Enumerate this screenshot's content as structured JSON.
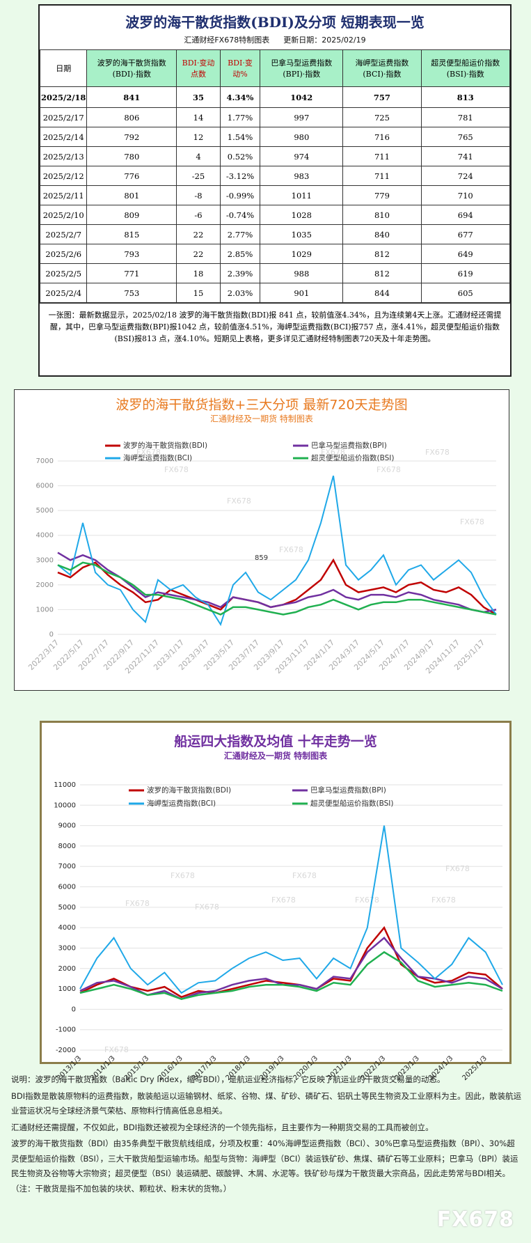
{
  "table": {
    "title": "波罗的海干散货指数(BDI)及分项  短期表现一览",
    "source": "汇通财经FX678特制图表",
    "update": "更新日期：2025/02/19",
    "header": [
      "日期",
      "波罗的海干散货指数(BDI)·指数",
      "BDI·变动点数",
      "BDI·变动%",
      "巴拿马型运费指数(BPI)·指数",
      "海岬型运费指数(BCI)·指数",
      "超灵便型船运价指数(BSI)·指数"
    ],
    "rows": [
      [
        "2025/2/18",
        "841",
        "35",
        "4.34%",
        "1042",
        "757",
        "813"
      ],
      [
        "2025/2/17",
        "806",
        "14",
        "1.77%",
        "997",
        "725",
        "781"
      ],
      [
        "2025/2/14",
        "792",
        "12",
        "1.54%",
        "980",
        "716",
        "765"
      ],
      [
        "2025/2/13",
        "780",
        "4",
        "0.52%",
        "974",
        "711",
        "741"
      ],
      [
        "2025/2/12",
        "776",
        "-25",
        "-3.12%",
        "983",
        "711",
        "724"
      ],
      [
        "2025/2/11",
        "801",
        "-8",
        "-0.99%",
        "1011",
        "779",
        "710"
      ],
      [
        "2025/2/10",
        "809",
        "-6",
        "-0.74%",
        "1028",
        "810",
        "694"
      ],
      [
        "2025/2/7",
        "815",
        "22",
        "2.77%",
        "1035",
        "840",
        "677"
      ],
      [
        "2025/2/6",
        "793",
        "22",
        "2.85%",
        "1029",
        "812",
        "649"
      ],
      [
        "2025/2/5",
        "771",
        "18",
        "2.39%",
        "988",
        "812",
        "619"
      ],
      [
        "2025/2/4",
        "753",
        "15",
        "2.03%",
        "901",
        "844",
        "605"
      ]
    ],
    "note": "一张图：最新数据显示，2025/02/18 波罗的海干散货指数(BDI)报 841 点，较前值涨4.34%，且为连续第4天上涨。汇通财经还需提醒，其中，巴拿马型运费指数(BPI)报1042 点，较前值涨4.51%，海岬型运费指数(BCI)报757 点，涨4.41%，超灵便型船运价指数(BSI)报813 点，涨4.10%。短期见上表格，更多详见汇通财经特制图表720天及十年走势图。"
  },
  "chart_data": [
    {
      "type": "line",
      "title": "波罗的海干散货指数+三大分项  最新720天走势图",
      "subtitle": "汇通财经及一期货  特制图表",
      "title_color": "#e87a20",
      "annotation": "859",
      "watermark": "FX678",
      "categories": [
        "2022/3/17",
        null,
        "2022/5/17",
        null,
        "2022/7/17",
        null,
        "2022/9/17",
        null,
        "2022/11/17",
        null,
        "2023/1/17",
        null,
        "2023/3/17",
        null,
        "2023/5/17",
        null,
        "2023/7/17",
        null,
        "2023/9/17",
        null,
        "2023/11/17",
        null,
        "2024/1/17",
        null,
        "2024/3/17",
        null,
        "2024/5/17",
        null,
        "2024/7/17",
        null,
        "2024/9/17",
        null,
        "2024/11/17",
        null,
        "2025/1/17",
        null
      ],
      "series": [
        {
          "name": "波罗的海干散货指数(BDI)",
          "color": "#c00000",
          "values": [
            2500,
            2300,
            2700,
            2900,
            2400,
            2000,
            1700,
            1300,
            1400,
            1800,
            1600,
            1400,
            1200,
            1000,
            1500,
            1400,
            1300,
            1100,
            1200,
            1400,
            1800,
            2200,
            3000,
            2000,
            1700,
            1800,
            1900,
            1700,
            2000,
            2100,
            1800,
            1700,
            1900,
            1600,
            1100,
            800
          ]
        },
        {
          "name": "巴拿马型运费指数(BPI)",
          "color": "#7030a0",
          "values": [
            3300,
            3000,
            3200,
            3000,
            2600,
            2300,
            1900,
            1500,
            1700,
            1600,
            1500,
            1400,
            1300,
            1100,
            1500,
            1400,
            1300,
            1100,
            1200,
            1300,
            1500,
            1600,
            1800,
            1500,
            1400,
            1600,
            1600,
            1500,
            1700,
            1600,
            1400,
            1300,
            1200,
            1000,
            900,
            1000
          ]
        },
        {
          "name": "海岬型运费指数(BCI)",
          "color": "#1fa8e8",
          "values": [
            2800,
            2400,
            4500,
            2500,
            2000,
            1800,
            1000,
            500,
            2200,
            1800,
            2000,
            1500,
            1200,
            400,
            2000,
            2500,
            1700,
            1400,
            1800,
            2200,
            3000,
            4500,
            6400,
            2800,
            2200,
            2600,
            3200,
            2000,
            2600,
            2800,
            2200,
            2600,
            3000,
            2500,
            1500,
            800
          ]
        },
        {
          "name": "超灵便型船运价指数(BSI)",
          "color": "#20b050",
          "values": [
            2800,
            2600,
            2900,
            2800,
            2500,
            2300,
            2000,
            1600,
            1600,
            1500,
            1400,
            1200,
            1000,
            800,
            1100,
            1100,
            1000,
            900,
            800,
            900,
            1100,
            1200,
            1400,
            1200,
            1000,
            1200,
            1300,
            1300,
            1400,
            1400,
            1300,
            1200,
            1100,
            1000,
            900,
            800
          ]
        }
      ],
      "ylim": [
        0,
        7000
      ],
      "yticks": [
        0,
        1000,
        2000,
        3000,
        4000,
        5000,
        6000,
        7000
      ],
      "grid": true
    },
    {
      "type": "line",
      "title": "船运四大指数及均值 十年走势一览",
      "subtitle": "汇通财经及一期货 特制图表",
      "title_color": "#7030a0",
      "watermark": "FX678",
      "categories": [
        "2013/1/3",
        null,
        "2014/1/3",
        null,
        "2015/1/3",
        null,
        "2016/1/3",
        null,
        "2017/1/3",
        null,
        "2018/1/3",
        null,
        "2019/1/3",
        null,
        "2020/1/3",
        null,
        "2021/1/3",
        null,
        "2022/1/3",
        null,
        "2023/1/3",
        null,
        "2024/1/3",
        null,
        "2025/1/3",
        null
      ],
      "series": [
        {
          "name": "波罗的海干散货指数(BDI)",
          "color": "#c00000",
          "values": [
            800,
            1200,
            1500,
            1100,
            900,
            1100,
            600,
            900,
            800,
            1000,
            1200,
            1400,
            1300,
            1200,
            1000,
            1500,
            1400,
            3000,
            4000,
            2200,
            1600,
            1300,
            1400,
            1800,
            1700,
            1000
          ]
        },
        {
          "name": "巴拿马型运费指数(BPI)",
          "color": "#7030a0",
          "values": [
            900,
            1300,
            1400,
            1100,
            700,
            900,
            500,
            800,
            900,
            1200,
            1400,
            1500,
            1200,
            1200,
            1000,
            1600,
            1500,
            2800,
            3500,
            2500,
            1600,
            1500,
            1300,
            1600,
            1500,
            1000
          ]
        },
        {
          "name": "海岬型运费指数(BCI)",
          "color": "#1fa8e8",
          "values": [
            1000,
            2500,
            3500,
            2000,
            1200,
            1800,
            800,
            1300,
            1400,
            2000,
            2500,
            2800,
            2400,
            2500,
            1500,
            2500,
            2000,
            4000,
            9000,
            3000,
            2300,
            1500,
            2200,
            3500,
            2800,
            1200
          ]
        },
        {
          "name": "超灵便型船运价指数(BSI)",
          "color": "#20b050",
          "values": [
            800,
            1000,
            1200,
            1000,
            700,
            800,
            500,
            700,
            800,
            900,
            1100,
            1200,
            1200,
            1100,
            900,
            1300,
            1200,
            2200,
            2800,
            2300,
            1400,
            1100,
            1200,
            1300,
            1200,
            900
          ]
        }
      ],
      "ylim": [
        -2000,
        11000
      ],
      "yticks": [
        -2000,
        -1000,
        0,
        1000,
        2000,
        3000,
        4000,
        5000,
        6000,
        7000,
        8000,
        9000,
        10000,
        11000
      ],
      "grid": true
    }
  ],
  "notes": [
    "说明：波罗的海干散货指数（Baltic Dry Index，缩写BDI），是航运业经济指标，它反映了航运业的干散货交易量的动态。",
    "BDI指数是散装原物料的运费指数，散装船运以运输钢材、纸浆、谷物、煤、矿砂、磷矿石、铝矾土等民生物资及工业原料为主。因此，散装航运业营运状况与全球经济景气荣枯、原物料行情高低息息相关。",
    "汇通财经还需提醒，不仅如此，BDI指数还被视为全球经济的一个领先指标，且主要作为一种期货交易的工具而被创立。",
    "波罗的海干散货指数（BDI）由35条典型干散货航线组成，分项及权重：40%海岬型运费指数（BCI）、30%巴拿马型运费指数（BPI）、30%超灵便型船运价指数（BSI），三大干散货船型运输市场。船型与货物：海岬型（BCI）装运铁矿砂、焦煤、磷矿石等工业原料；巴拿马（BPI）装运民生物资及谷物等大宗物资；超灵便型（BSI）装运磷肥、碳酸钾、木屑、水泥等。铁矿砂与煤为干散货最大宗商品，因此走势常与BDI相关。（注：干散货是指不加包装的块状、颗粒状、粉末状的货物。）"
  ],
  "logo": "FX678"
}
